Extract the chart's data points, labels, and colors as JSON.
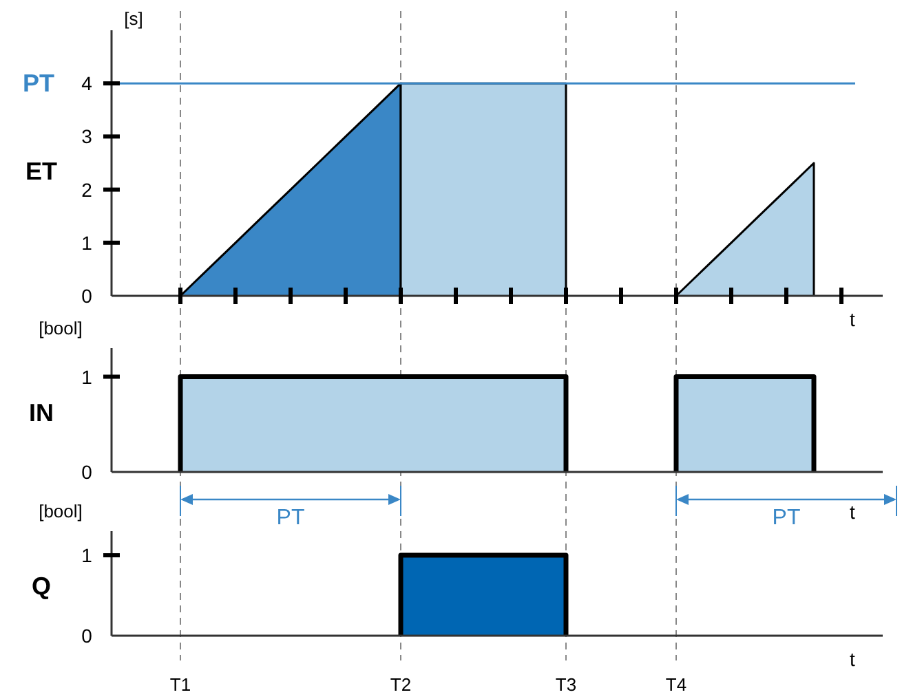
{
  "chart_data": [
    {
      "type": "area",
      "ylabel": "ET",
      "xlabel": "t",
      "ylim": [
        0,
        5
      ],
      "yticks": [
        0,
        1,
        2,
        3,
        4
      ],
      "tick_labels": "y",
      "categories": [
        null,
        null,
        "T1",
        null,
        null,
        null,
        null,
        null,
        null,
        null,
        "T2",
        null,
        null,
        null,
        null,
        null,
        "T3",
        null,
        null,
        null,
        "T4",
        null,
        null,
        null,
        null,
        null,
        null,
        null
      ],
      "series": [
        {
          "color": "#3a87c6",
          "values": [
            null,
            null,
            0,
            0.5,
            1,
            1.5,
            2,
            2.5,
            3,
            3.5,
            4,
            null,
            null,
            null,
            null,
            null,
            null,
            null,
            null,
            null,
            null,
            null,
            null,
            null,
            null,
            null,
            null,
            null
          ]
        },
        {
          "color": "#b3d3e8",
          "values": [
            null,
            null,
            null,
            null,
            null,
            null,
            null,
            null,
            null,
            null,
            4,
            4,
            4,
            4,
            4,
            4,
            4,
            null,
            null,
            null,
            null,
            null,
            null,
            null,
            null,
            null,
            null,
            null
          ]
        },
        {
          "color": "#b3d3e8",
          "values": [
            null,
            null,
            null,
            null,
            null,
            null,
            null,
            null,
            null,
            null,
            null,
            null,
            null,
            null,
            null,
            null,
            null,
            null,
            null,
            null,
            0,
            0.5,
            1,
            1.5,
            2,
            2.5,
            null,
            null
          ]
        }
      ],
      "ref_lines": [
        {
          "axis": "y",
          "value": 4,
          "label": "PT",
          "color": "#3a87c6"
        },
        {
          "axis": "x",
          "value": "T1",
          "line_style": "dashed"
        },
        {
          "axis": "x",
          "value": "T2",
          "line_style": "dashed"
        },
        {
          "axis": "x",
          "value": "T3",
          "line_style": "dashed"
        },
        {
          "axis": "x",
          "value": "T4",
          "line_style": "dashed"
        }
      ],
      "annotations": [
        "[s]"
      ]
    },
    {
      "type": "area",
      "ylabel": "IN",
      "xlabel": "t",
      "ylim": [
        0,
        1.3
      ],
      "yticks": [
        0,
        1
      ],
      "tick_labels": "y",
      "categories": [
        null,
        null,
        null,
        null,
        null,
        null,
        null,
        null,
        null,
        null,
        null,
        null,
        null,
        null,
        null,
        null,
        null,
        null,
        null,
        null,
        null,
        null,
        null,
        null,
        null,
        null,
        null,
        null
      ],
      "series": [
        {
          "color": "#b3d3e8",
          "values": [
            null,
            null,
            1,
            1,
            1,
            1,
            1,
            1,
            1,
            1,
            1,
            1,
            1,
            1,
            1,
            1,
            1,
            null,
            null,
            null,
            null,
            null,
            null,
            null,
            null,
            null,
            null,
            null
          ]
        },
        {
          "color": "#b3d3e8",
          "values": [
            null,
            null,
            null,
            null,
            null,
            null,
            null,
            null,
            null,
            null,
            null,
            null,
            null,
            null,
            null,
            null,
            null,
            null,
            null,
            null,
            1,
            1,
            1,
            1,
            1,
            1,
            null,
            null
          ]
        }
      ],
      "annotations": [
        "[bool]",
        "PT",
        "PT"
      ]
    },
    {
      "type": "area",
      "ylabel": "Q",
      "xlabel": "t",
      "ylim": [
        0,
        1.3
      ],
      "yticks": [
        0,
        1
      ],
      "categories": [
        null,
        null,
        "T1",
        null,
        null,
        null,
        null,
        null,
        null,
        null,
        "T2",
        null,
        null,
        null,
        null,
        null,
        "T3",
        null,
        null,
        null,
        "T4",
        null,
        null,
        null,
        null,
        null,
        null,
        null
      ],
      "series": [
        {
          "color": "#0066b3",
          "values": [
            null,
            null,
            null,
            null,
            null,
            null,
            null,
            null,
            null,
            null,
            1,
            1,
            1,
            1,
            1,
            1,
            1,
            null,
            null,
            null,
            null,
            null,
            null,
            null,
            null,
            null,
            null,
            null
          ]
        }
      ],
      "annotations": [
        "[bool]"
      ]
    }
  ]
}
